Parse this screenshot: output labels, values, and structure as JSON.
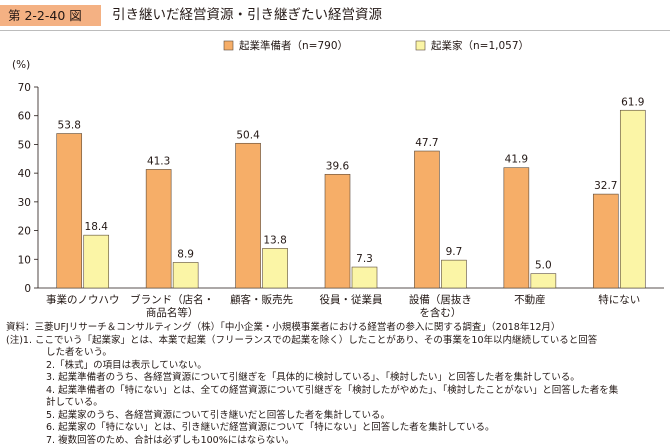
{
  "header": {
    "figure_number": "第 2-2-40 図",
    "title": "引き継いだ経営資源・引き継ぎたい経営資源"
  },
  "colors": {
    "figure_tag_bg": "#f4b183",
    "series_preparer": "#f6ae68",
    "series_founder": "#fbf5a6",
    "bar_stroke": "#5a4a3a"
  },
  "chart_data": {
    "type": "bar",
    "unit_label": "(%)",
    "categories": [
      "事業のノウハウ",
      "ブランド（店名・\n商品名等）",
      "顧客・販売先",
      "役員・従業員",
      "設備（居抜き\nを含む）",
      "不動産",
      "特にない"
    ],
    "series": [
      {
        "name": "起業準備者（n=790）",
        "values": [
          53.8,
          41.3,
          50.4,
          39.6,
          47.7,
          41.9,
          32.7
        ]
      },
      {
        "name": "起業家（n=1,057）",
        "values": [
          18.4,
          8.9,
          13.8,
          7.3,
          9.7,
          5.0,
          61.9
        ]
      }
    ],
    "ylim": [
      0,
      70
    ],
    "yticks": [
      0,
      10,
      20,
      30,
      40,
      50,
      60,
      70
    ],
    "grid": false,
    "legend_position": "top-center"
  },
  "notes": [
    {
      "text": "資料：三菱UFJリサーチ＆コンサルティング（株）「中小企業・小規模事業者における経営者の参入に関する調査」（2018年12月）",
      "indent": false
    },
    {
      "text": "(注)1. ここでいう「起業家」とは、本業で起業（フリーランスでの起業を除く）したことがあり、その事業を10年以内継続していると回答",
      "indent": false
    },
    {
      "text": "した者をいう。",
      "indent": true
    },
    {
      "text": "2.「株式」の項目は表示していない。",
      "indent": true
    },
    {
      "text": "3. 起業準備者のうち、各経営資源について引継ぎを「具体的に検討している」、「検討したい」と回答した者を集計している。",
      "indent": true
    },
    {
      "text": "4. 起業準備者の「特にない」とは、全ての経営資源について引継ぎを「検討したがやめた」、「検討したことがない」と回答した者を集",
      "indent": true
    },
    {
      "text": "計している。",
      "indent": true
    },
    {
      "text": "5. 起業家のうち、各経営資源について引き継いだと回答した者を集計している。",
      "indent": true
    },
    {
      "text": "6. 起業家の「特にない」とは、引き継いだ経営資源について「特にない」と回答した者を集計している。",
      "indent": true
    },
    {
      "text": "7. 複数回答のため、合計は必ずしも100%にはならない。",
      "indent": true
    }
  ]
}
